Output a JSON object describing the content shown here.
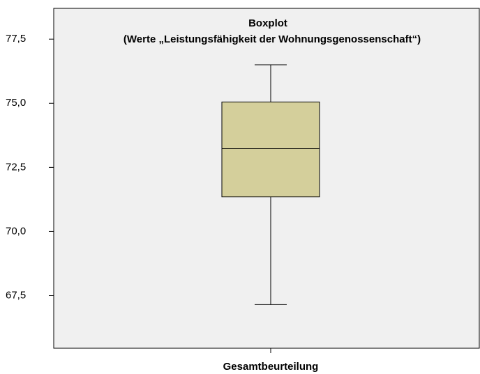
{
  "chart_data": {
    "type": "box",
    "title": "Boxplot",
    "subtitle": "(Werte „Leistungsfähigkeit der Wohnungsgenossenschaft“)",
    "categories": [
      "Gesamtbeurteilung"
    ],
    "boxes": [
      {
        "whislo": 67.15,
        "q1": 71.35,
        "med": 73.23,
        "q3": 75.05,
        "whishi": 76.5
      }
    ],
    "color": "#d4cf9b",
    "background": "#f0f0f0",
    "ylim": [
      65.45,
      78.7
    ],
    "yticks": [
      {
        "value": 67.5,
        "label": "67,5"
      },
      {
        "value": 70.0,
        "label": "70,0"
      },
      {
        "value": 72.5,
        "label": "72,5"
      },
      {
        "value": 75.0,
        "label": "75,0"
      },
      {
        "value": 77.5,
        "label": "77,5"
      }
    ]
  }
}
